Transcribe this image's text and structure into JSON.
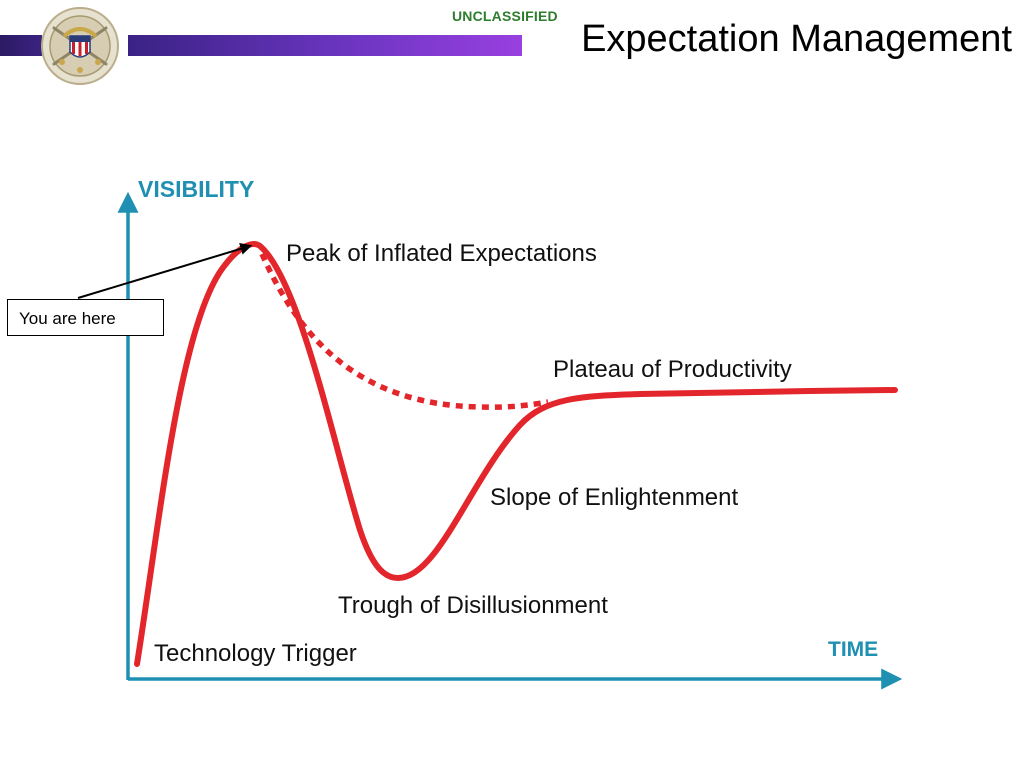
{
  "header": {
    "classification": "UNCLASSIFIED",
    "title": "Expectation Management"
  },
  "colors": {
    "banner_dark": "#2a1b63",
    "banner_light": "#9840e0",
    "classification_green": "#2e7d2e",
    "axis_teal": "#1f8fb2",
    "curve_red": "#e3262b"
  },
  "icons": {
    "seal": "joint-staff-seal-icon"
  },
  "diagram": {
    "y_axis_label": "VISIBILITY",
    "x_axis_label": "TIME",
    "phases": {
      "trigger": "Technology Trigger",
      "peak": "Peak of Inflated Expectations",
      "trough": "Trough of Disillusionment",
      "slope": "Slope of Enlightenment",
      "plateau": "Plateau of Productivity"
    },
    "callout": "You are here"
  }
}
